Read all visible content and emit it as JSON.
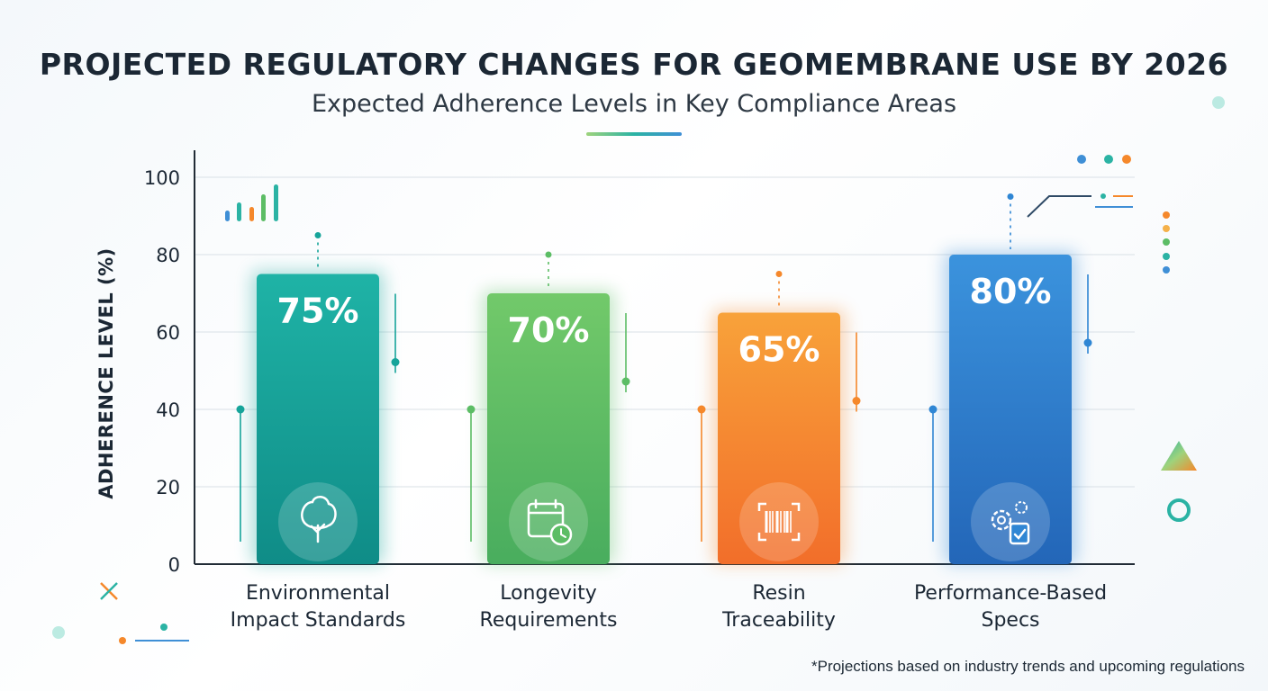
{
  "title": "PROJECTED REGULATORY CHANGES FOR GEOMEMBRANE USE BY 2026",
  "subtitle": "Expected Adherence Levels in Key Compliance Areas",
  "footnote": "*Projections based on industry trends and upcoming regulations",
  "chart_data": {
    "type": "bar",
    "title": "PROJECTED REGULATORY CHANGES FOR GEOMEMBRANE USE BY 2026",
    "subtitle": "Expected Adherence Levels in Key Compliance Areas",
    "xlabel": "",
    "ylabel": "ADHERENCE LEVEL (%)",
    "ylim": [
      0,
      100
    ],
    "yticks": [
      0,
      20,
      40,
      60,
      80,
      100
    ],
    "grid": true,
    "categories": [
      [
        "Environmental",
        "Impact Standards"
      ],
      [
        "Longevity",
        "Requirements"
      ],
      [
        "Resin",
        "Traceability"
      ],
      [
        "Performance-Based",
        "Specs"
      ]
    ],
    "values": [
      75,
      70,
      65,
      80
    ],
    "value_labels": [
      "75%",
      "70%",
      "65%",
      "80%"
    ],
    "colors": [
      "#16a49a",
      "#5cbd65",
      "#f5882b",
      "#2f86d4"
    ],
    "icons": [
      "tree-icon",
      "calendar-clock-icon",
      "barcode-scan-icon",
      "gears-clipboard-icon"
    ]
  }
}
